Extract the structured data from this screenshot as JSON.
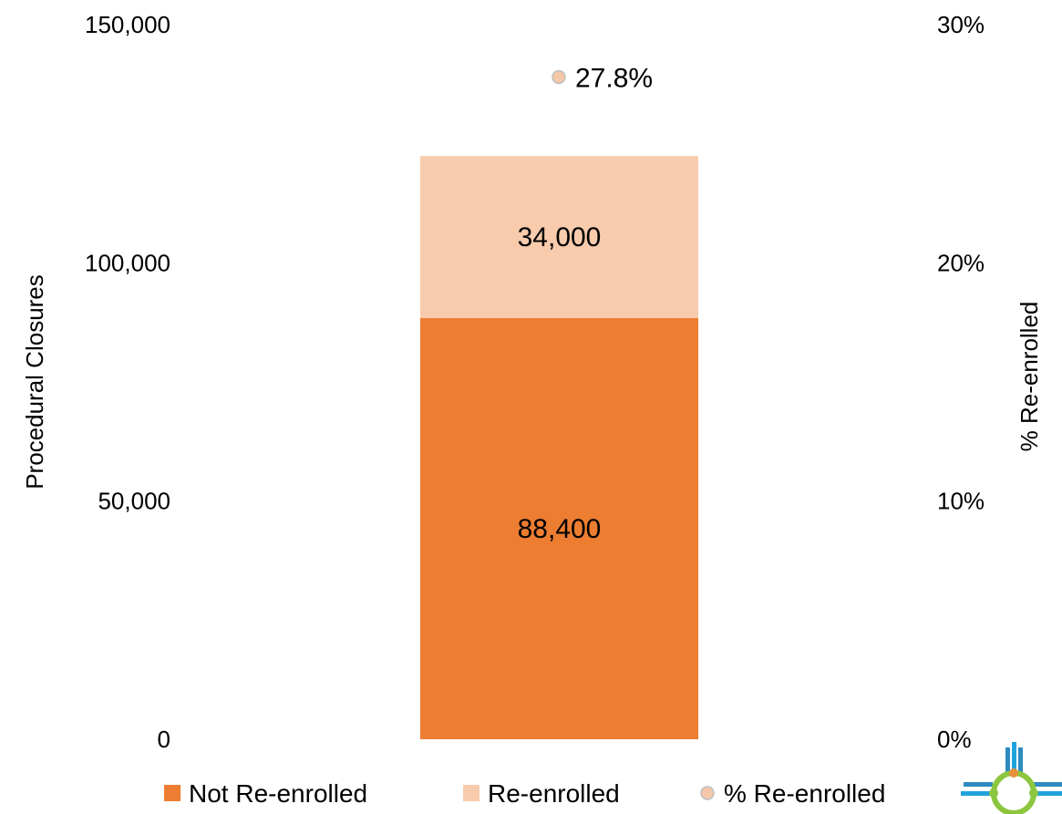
{
  "chart_data": {
    "type": "bar",
    "subtype": "stacked-bar-with-point-on-secondary-axis",
    "categories": [
      ""
    ],
    "series": [
      {
        "name": "Not Re-enrolled",
        "values": [
          88400
        ],
        "labels": [
          "88,400"
        ],
        "color": "#ED7D31",
        "axis": "primary"
      },
      {
        "name": "Re-enrolled",
        "values": [
          34000
        ],
        "labels": [
          "34,000"
        ],
        "color": "#F8CBAD",
        "axis": "primary"
      },
      {
        "name": "% Re-enrolled",
        "values": [
          27.8
        ],
        "labels": [
          "27.8%"
        ],
        "color": "#F4C7A8",
        "axis": "secondary",
        "marker": "circle"
      }
    ],
    "ylabel": "Procedural Closures",
    "y2label": "% Re-enrolled",
    "ylim": [
      0,
      150000
    ],
    "y2lim": [
      0,
      30
    ],
    "yticks": [
      "0",
      "50,000",
      "100,000",
      "150,000"
    ],
    "y2ticks": [
      "0%",
      "10%",
      "20%",
      "30%"
    ],
    "grid": false,
    "legend": {
      "position": "bottom",
      "entries": [
        "Not Re-enrolled",
        "Re-enrolled",
        "% Re-enrolled"
      ]
    }
  },
  "logo": {
    "name": "new-mexico-zia-logo",
    "colors": [
      "#2E8BC0",
      "#1FA3DC",
      "#8CC63F",
      "#E6913B"
    ]
  }
}
